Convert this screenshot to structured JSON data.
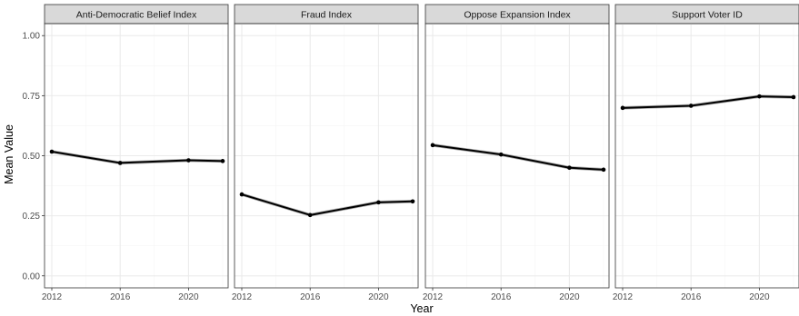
{
  "chart_data": {
    "type": "line",
    "facet_layout": "1 row x 4 panels, shared y axis",
    "xlabel": "Year",
    "ylabel": "Mean Value",
    "x_ticks": [
      2012,
      2016,
      2020
    ],
    "y_ticks": [
      "0.00",
      "0.25",
      "0.50",
      "0.75",
      "1.00"
    ],
    "xlim": [
      2012,
      2022
    ],
    "ylim": [
      0,
      1
    ],
    "grid": true,
    "legend": "none",
    "panels": [
      {
        "title": "Anti-Democratic Belief Index",
        "x": [
          2012,
          2016,
          2020,
          2022
        ],
        "values": [
          0.517,
          0.47,
          0.481,
          0.478
        ]
      },
      {
        "title": "Fraud Index",
        "x": [
          2012,
          2016,
          2020,
          2022
        ],
        "values": [
          0.339,
          0.253,
          0.306,
          0.31
        ]
      },
      {
        "title": "Oppose Expansion Index",
        "x": [
          2012,
          2016,
          2020,
          2022
        ],
        "values": [
          0.544,
          0.505,
          0.45,
          0.442
        ]
      },
      {
        "title": "Support Voter ID",
        "x": [
          2012,
          2016,
          2020,
          2022
        ],
        "values": [
          0.699,
          0.708,
          0.747,
          0.744
        ]
      }
    ],
    "colors": {
      "line": "#000000",
      "band": "#6b6b6b",
      "panel_border": "#333333",
      "strip_fill": "#d9d9d9",
      "grid_major": "#ebebeb",
      "grid_minor": "#f5f5f5"
    }
  }
}
